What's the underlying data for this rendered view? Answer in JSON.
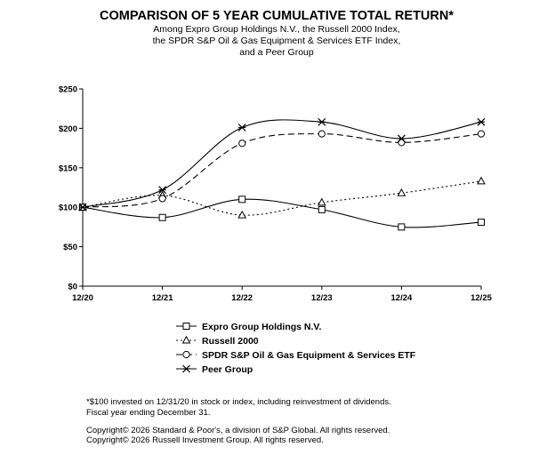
{
  "chart_data": {
    "type": "line",
    "title": "COMPARISON OF 5 YEAR CUMULATIVE TOTAL RETURN*",
    "subtitle": [
      "Among Expro Group Holdings N.V., the Russell 2000 Index,",
      "the SPDR S&P Oil & Gas Equipment & Services ETF Index,",
      "and a Peer Group"
    ],
    "categories": [
      "12/20",
      "12/21",
      "12/22",
      "12/23",
      "12/24",
      "12/25"
    ],
    "y_ticks": [
      "$0",
      "$50",
      "$100",
      "$150",
      "$200",
      "$250"
    ],
    "ylim": [
      0,
      250
    ],
    "series": [
      {
        "name": "Expro Group Holdings N.V.",
        "marker": "square",
        "dash": "solid",
        "values": [
          100,
          87,
          110,
          97,
          75,
          81
        ]
      },
      {
        "name": "Russell 2000",
        "marker": "triangle",
        "dash": "dotted",
        "values": [
          100,
          115,
          90,
          106,
          118,
          133
        ]
      },
      {
        "name": "SPDR S&P Oil & Gas Equipment & Services ETF",
        "marker": "circle",
        "dash": "dashed",
        "values": [
          100,
          111,
          181,
          193,
          182,
          193
        ]
      },
      {
        "name": "Peer Group",
        "marker": "asterisk",
        "dash": "solid",
        "values": [
          100,
          122,
          201,
          208,
          187,
          208
        ]
      }
    ],
    "footnotes": [
      "*$100 invested on 12/31/20 in stock or index, including reinvestment of dividends.",
      "Fiscal year ending December 31.",
      "Copyright© 2026 Standard & Poor's, a division of S&P Global. All rights reserved.",
      "Copyright© 2026 Russell Investment Group. All rights reserved."
    ]
  }
}
